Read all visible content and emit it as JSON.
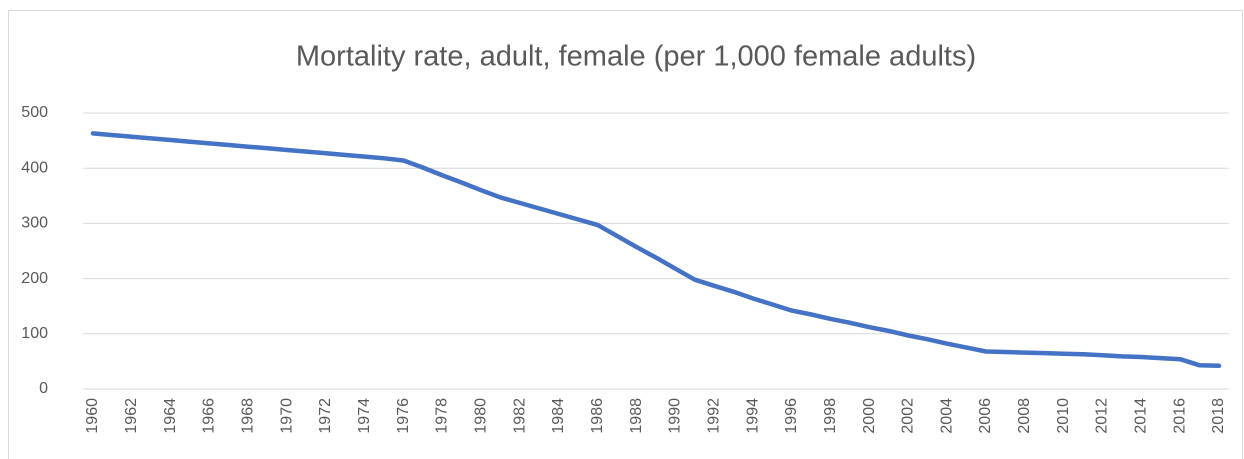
{
  "chart_data": {
    "type": "line",
    "title": "Mortality rate, adult, female (per 1,000 female adults)",
    "categories": [
      "1960",
      null,
      "1962",
      null,
      "1964",
      null,
      "1966",
      null,
      "1968",
      null,
      "1970",
      null,
      "1972",
      null,
      "1974",
      null,
      "1976",
      null,
      "1978",
      null,
      "1980",
      null,
      "1982",
      null,
      "1984",
      null,
      "1986",
      null,
      "1988",
      null,
      "1990",
      null,
      "1992",
      null,
      "1994",
      null,
      "1996",
      null,
      "1998",
      null,
      "2000",
      null,
      "2002",
      null,
      "2004",
      null,
      "2006",
      null,
      "2008",
      null,
      "2010",
      null,
      "2012",
      null,
      "2014",
      null,
      "2016",
      null,
      "2018"
    ],
    "values": [
      463,
      460,
      457,
      454,
      451,
      448,
      445,
      442,
      439,
      436,
      433,
      430,
      427,
      424,
      421,
      418,
      414,
      401,
      387,
      374,
      360,
      347,
      337,
      327,
      317,
      307,
      297,
      277,
      257,
      238,
      218,
      198,
      187,
      176,
      164,
      153,
      142,
      135,
      127,
      120,
      112,
      105,
      97,
      90,
      82,
      75,
      68,
      67,
      66,
      65,
      64,
      63,
      61,
      59,
      58,
      56,
      54,
      43,
      42
    ],
    "color": "#4472c4",
    "ylim": [
      0,
      500
    ],
    "yticks": [
      0,
      100,
      200,
      300,
      400,
      500
    ],
    "grid": true
  }
}
